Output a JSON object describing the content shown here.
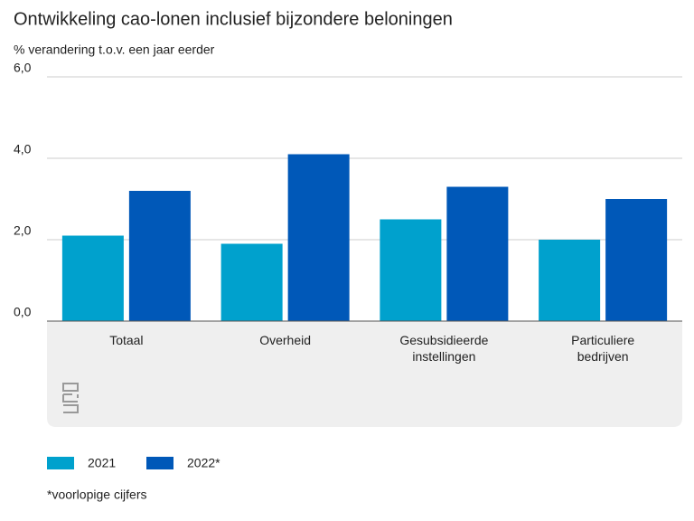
{
  "chart_data": {
    "type": "bar",
    "title": "Ontwikkeling cao-lonen inclusief bijzondere beloningen",
    "subtitle": "% verandering t.o.v. een jaar eerder",
    "categories": [
      "Totaal",
      "Overheid",
      "Gesubsidieerde instellingen",
      "Particuliere bedrijven"
    ],
    "series": [
      {
        "name": "2021",
        "color": "#00a1cd",
        "values": [
          2.1,
          1.9,
          2.5,
          2.0
        ]
      },
      {
        "name": "2022*",
        "color": "#0058b8",
        "values": [
          3.2,
          4.1,
          3.3,
          3.0
        ]
      }
    ],
    "ylim": [
      0,
      6
    ],
    "yticks": [
      {
        "value": 0,
        "label": "0,0"
      },
      {
        "value": 2,
        "label": "2,0"
      },
      {
        "value": 4,
        "label": "4,0"
      },
      {
        "value": 6,
        "label": "6,0"
      }
    ],
    "grid": true,
    "note": "*voorlopige cijfers"
  }
}
